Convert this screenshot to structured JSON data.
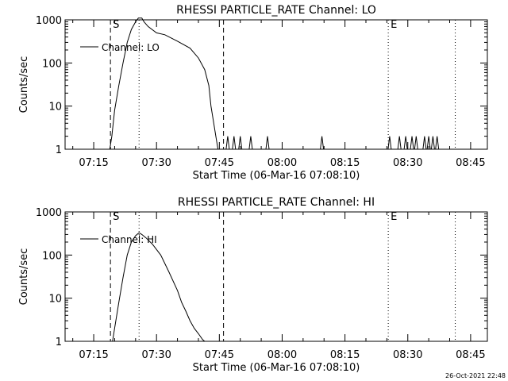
{
  "footer": {
    "timestamp": "26-Oct-2021 22:48"
  },
  "chart_data": [
    {
      "type": "line",
      "title": "RHESSI PARTICLE_RATE Channel: LO",
      "xlabel": "Start Time (06-Mar-16 07:08:10)",
      "ylabel": "Counts/sec",
      "xlim": [
        "07:08:10",
        "08:49:00"
      ],
      "ylim": [
        1,
        1000
      ],
      "yscale": "log",
      "x_ticks": [
        "07:15",
        "07:30",
        "07:45",
        "08:00",
        "08:15",
        "08:30",
        "08:45"
      ],
      "y_ticks": [
        "1",
        "10",
        "100",
        "1000"
      ],
      "legend": {
        "entries": [
          "Channel: LO"
        ],
        "placement": "top-left"
      },
      "markers": [
        {
          "label": "S",
          "time": "07:19:00",
          "style": "dashed"
        },
        {
          "label": "",
          "time": "07:25:50",
          "style": "dotted"
        },
        {
          "label": "",
          "time": "07:46:00",
          "style": "dashed"
        },
        {
          "label": "E",
          "time": "08:25:20",
          "style": "dotted"
        },
        {
          "label": "",
          "time": "08:41:20",
          "style": "dotted"
        }
      ],
      "series": [
        {
          "name": "Channel: LO",
          "x": [
            "07:18:50",
            "07:19:20",
            "07:20:00",
            "07:21:00",
            "07:22:00",
            "07:23:00",
            "07:24:00",
            "07:25:00",
            "07:25:40",
            "07:26:30",
            "07:27:00",
            "07:28:00",
            "07:30:00",
            "07:32:00",
            "07:35:00",
            "07:38:00",
            "07:40:00",
            "07:41:30",
            "07:42:30",
            "07:43:00",
            "07:43:40",
            "07:44:10",
            "07:44:40",
            "07:45:10",
            "07:45:40",
            "07:46:20"
          ],
          "values": [
            1,
            2,
            8,
            30,
            100,
            300,
            600,
            900,
            1100,
            1100,
            900,
            700,
            500,
            450,
            320,
            220,
            130,
            70,
            30,
            10,
            4,
            2,
            1,
            1,
            1,
            1
          ]
        }
      ],
      "spikes": {
        "height": 2,
        "times": [
          "07:47:00",
          "07:48:30",
          "07:50:00",
          "07:52:30",
          "07:56:30",
          "08:09:30",
          "08:25:40",
          "08:28:00",
          "08:29:30",
          "08:31:00",
          "08:32:00",
          "08:34:00",
          "08:35:00",
          "08:36:00",
          "08:37:00"
        ]
      }
    },
    {
      "type": "line",
      "title": "RHESSI PARTICLE_RATE Channel: HI",
      "xlabel": "Start Time (06-Mar-16 07:08:10)",
      "ylabel": "Counts/sec",
      "xlim": [
        "07:08:10",
        "08:49:00"
      ],
      "ylim": [
        1,
        1000
      ],
      "yscale": "log",
      "x_ticks": [
        "07:15",
        "07:30",
        "07:45",
        "08:00",
        "08:15",
        "08:30",
        "08:45"
      ],
      "y_ticks": [
        "1",
        "10",
        "100",
        "1000"
      ],
      "legend": {
        "entries": [
          "Channel: HI"
        ],
        "placement": "top-left"
      },
      "markers": [
        {
          "label": "S",
          "time": "07:19:00",
          "style": "dashed"
        },
        {
          "label": "",
          "time": "07:25:50",
          "style": "dotted"
        },
        {
          "label": "",
          "time": "07:46:00",
          "style": "dashed"
        },
        {
          "label": "E",
          "time": "08:25:20",
          "style": "dotted"
        },
        {
          "label": "",
          "time": "08:41:20",
          "style": "dotted"
        }
      ],
      "series": [
        {
          "name": "Channel: HI",
          "x": [
            "07:19:30",
            "07:20:00",
            "07:21:00",
            "07:22:00",
            "07:23:00",
            "07:24:00",
            "07:25:00",
            "07:25:50",
            "07:26:30",
            "07:27:30",
            "07:29:00",
            "07:31:00",
            "07:33:00",
            "07:35:00",
            "07:36:00",
            "07:37:00",
            "07:38:00",
            "07:39:00",
            "07:40:00",
            "07:41:00",
            "07:41:30"
          ],
          "values": [
            1,
            2,
            8,
            30,
            100,
            200,
            280,
            330,
            300,
            250,
            180,
            100,
            40,
            15,
            8,
            5,
            3,
            2,
            1.5,
            1.1,
            1
          ]
        }
      ]
    }
  ]
}
